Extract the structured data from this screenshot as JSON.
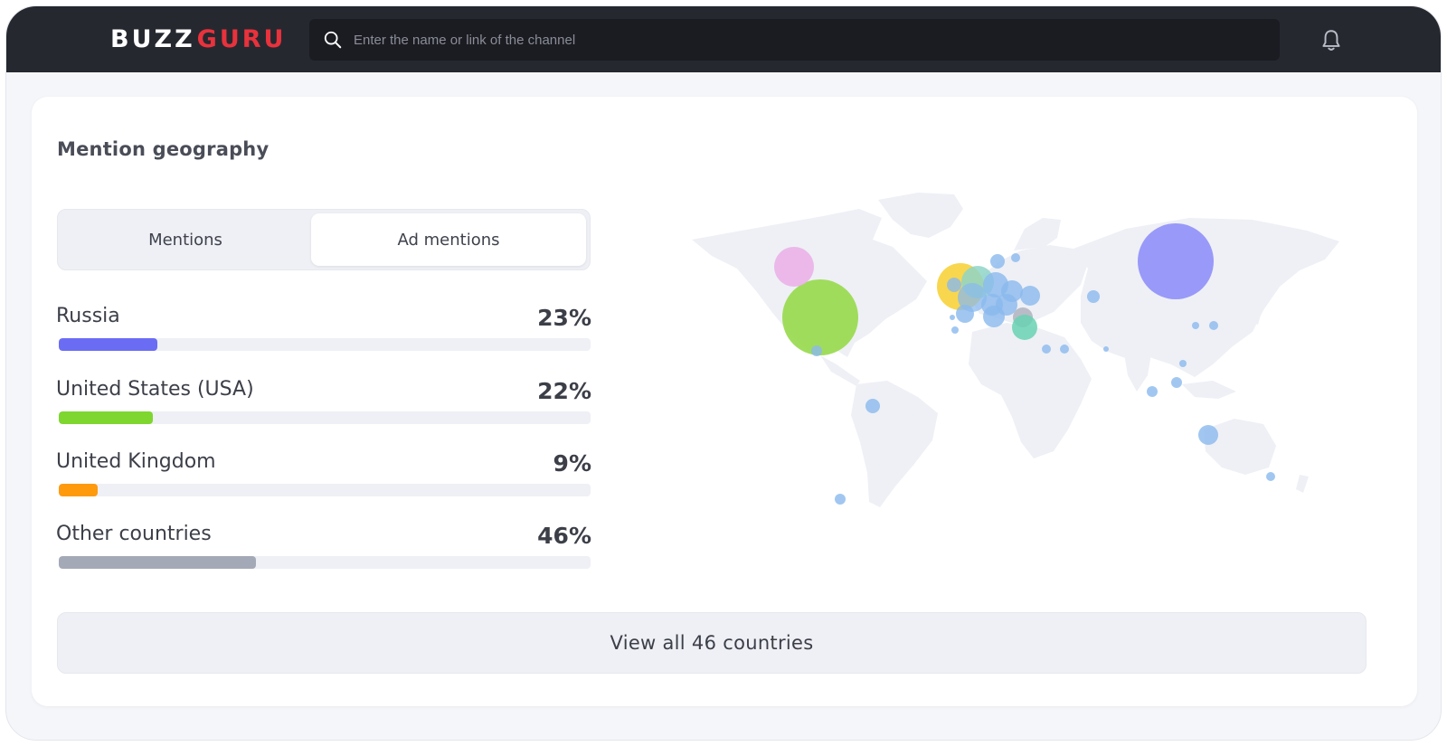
{
  "header": {
    "logo_left": "BUZZ",
    "logo_right": "GURU",
    "search_placeholder": "Enter the name or link of the channel",
    "search_icon": "search-icon",
    "notifications_icon": "bell-icon"
  },
  "card": {
    "title": "Mention geography",
    "tabs": [
      {
        "label": "Mentions",
        "selected": false
      },
      {
        "label": "Ad mentions",
        "selected": true
      }
    ],
    "countries": [
      {
        "name": "Russia",
        "percent_label": "23%",
        "share": 0.23,
        "color": "#6b6cf4"
      },
      {
        "name": "United States (USA)",
        "percent_label": "22%",
        "share": 0.22,
        "color": "#7ed62e"
      },
      {
        "name": "United Kingdom",
        "percent_label": "9%",
        "share": 0.09,
        "color": "#ff9a0d"
      },
      {
        "name": "Other countries",
        "percent_label": "46%",
        "share": 0.46,
        "color": "#a4a9b7"
      }
    ],
    "view_all_label": "View all 46 countries"
  },
  "colors": {
    "topbar": "#262830",
    "logo_accent": "#e8323c",
    "map_land": "#eef0f5",
    "bubble_default": "#8ab9ee"
  }
}
